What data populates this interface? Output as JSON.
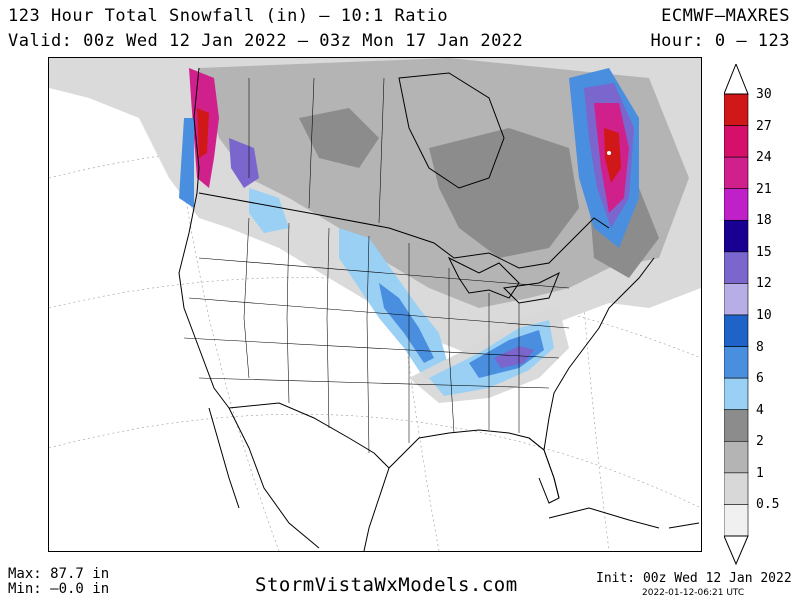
{
  "header": {
    "title": "123 Hour Total Snowfall (in) – 10:1 Ratio",
    "valid": "Valid: 00z Wed 12 Jan 2022 – 03z Mon 17 Jan 2022",
    "model": "ECMWF–MAXRES",
    "hour": "Hour: 0 – 123"
  },
  "legend": {
    "labels": [
      "30",
      "27",
      "24",
      "21",
      "18",
      "15",
      "12",
      "10",
      "8",
      "6",
      "4",
      "2",
      "1",
      "0.5"
    ],
    "colors": [
      "#d01818",
      "#d4106a",
      "#d0208c",
      "#c020c8",
      "#1a0090",
      "#7a66cc",
      "#b8aee6",
      "#1e64c8",
      "#4a8ee0",
      "#9ad0f4",
      "#8c8c8c",
      "#b4b4b4",
      "#d8d8d8",
      "#f0f0f0"
    ]
  },
  "footer": {
    "max": "Max: 87.7 in",
    "min": "Min: –0.0 in",
    "site": "StormVistaWxModels.com",
    "init": "Init: 00z Wed 12 Jan 2022",
    "stamp": "2022-01-12-06:21 UTC"
  },
  "map": {
    "region": "North America",
    "colors": {
      "light_gray": "#d8d8d8",
      "mid_gray": "#b4b4b4",
      "dark_gray": "#8c8c8c",
      "light_blue": "#9ad0f4",
      "blue": "#4a8ee0",
      "purple": "#7a66cc",
      "magenta": "#d0208c",
      "red": "#d01818"
    }
  }
}
